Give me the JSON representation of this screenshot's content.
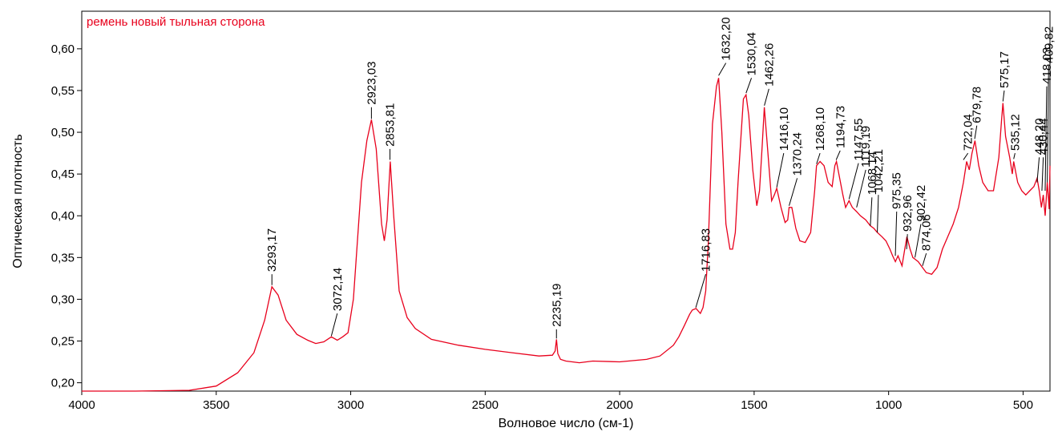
{
  "chart_data": {
    "type": "line",
    "title": "ремень новый тыльная сторона",
    "xlabel": "Волновое число (см-1)",
    "ylabel": "Оптическая плотность",
    "xlim": [
      4000,
      400
    ],
    "ylim": [
      0.19,
      0.645
    ],
    "x_ticks": [
      4000,
      3500,
      3000,
      2500,
      2000,
      1500,
      1000,
      500
    ],
    "x_tick_labels": [
      "4000",
      "3500",
      "3000",
      "2500",
      "2000",
      "1500",
      "1000",
      "500"
    ],
    "y_ticks": [
      0.2,
      0.25,
      0.3,
      0.35,
      0.4,
      0.45,
      0.5,
      0.55,
      0.6
    ],
    "y_tick_labels": [
      "0,20",
      "0,25",
      "0,30",
      "0,35",
      "0,40",
      "0,45",
      "0,50",
      "0,55",
      "0,60"
    ],
    "grid": false,
    "series": [
      {
        "color": "#e8001c",
        "x": [
          4000,
          3800,
          3600,
          3500,
          3420,
          3360,
          3320,
          3293,
          3270,
          3240,
          3200,
          3160,
          3130,
          3100,
          3072,
          3050,
          3030,
          3010,
          2990,
          2960,
          2940,
          2923,
          2905,
          2885,
          2875,
          2865,
          2853,
          2840,
          2820,
          2790,
          2760,
          2700,
          2600,
          2500,
          2400,
          2300,
          2250,
          2240,
          2235,
          2230,
          2220,
          2200,
          2150,
          2100,
          2000,
          1900,
          1850,
          1800,
          1780,
          1760,
          1740,
          1730,
          1716,
          1700,
          1690,
          1680,
          1670,
          1655,
          1640,
          1632,
          1620,
          1605,
          1590,
          1580,
          1570,
          1560,
          1548,
          1540,
          1530,
          1520,
          1505,
          1490,
          1480,
          1470,
          1462,
          1450,
          1435,
          1425,
          1416,
          1400,
          1385,
          1375,
          1370,
          1360,
          1345,
          1330,
          1310,
          1290,
          1275,
          1268,
          1255,
          1240,
          1225,
          1210,
          1200,
          1194,
          1185,
          1170,
          1160,
          1147,
          1135,
          1119,
          1105,
          1085,
          1068,
          1055,
          1042,
          1025,
          1010,
          995,
          985,
          975,
          965,
          950,
          940,
          932,
          920,
          910,
          902,
          890,
          874,
          860,
          840,
          820,
          800,
          780,
          760,
          740,
          722,
          710,
          700,
          690,
          679,
          665,
          650,
          630,
          610,
          590,
          580,
          575,
          565,
          550,
          540,
          535,
          520,
          505,
          490,
          475,
          460,
          448,
          440,
          432,
          425,
          418,
          410,
          403,
          400
        ],
        "y": [
          0.19,
          0.19,
          0.191,
          0.196,
          0.212,
          0.236,
          0.275,
          0.315,
          0.305,
          0.275,
          0.258,
          0.251,
          0.247,
          0.249,
          0.255,
          0.251,
          0.255,
          0.26,
          0.3,
          0.44,
          0.49,
          0.515,
          0.48,
          0.39,
          0.37,
          0.395,
          0.465,
          0.4,
          0.31,
          0.278,
          0.265,
          0.252,
          0.245,
          0.24,
          0.236,
          0.232,
          0.233,
          0.238,
          0.252,
          0.235,
          0.228,
          0.226,
          0.224,
          0.226,
          0.225,
          0.228,
          0.232,
          0.245,
          0.255,
          0.268,
          0.282,
          0.287,
          0.289,
          0.283,
          0.29,
          0.31,
          0.37,
          0.51,
          0.555,
          0.565,
          0.5,
          0.39,
          0.36,
          0.36,
          0.38,
          0.44,
          0.5,
          0.54,
          0.545,
          0.52,
          0.455,
          0.412,
          0.43,
          0.485,
          0.53,
          0.48,
          0.418,
          0.425,
          0.433,
          0.41,
          0.392,
          0.395,
          0.41,
          0.41,
          0.385,
          0.37,
          0.368,
          0.38,
          0.43,
          0.46,
          0.465,
          0.46,
          0.44,
          0.435,
          0.46,
          0.465,
          0.45,
          0.425,
          0.41,
          0.418,
          0.41,
          0.405,
          0.4,
          0.395,
          0.388,
          0.385,
          0.38,
          0.375,
          0.37,
          0.36,
          0.352,
          0.345,
          0.352,
          0.34,
          0.36,
          0.375,
          0.36,
          0.35,
          0.348,
          0.345,
          0.338,
          0.332,
          0.33,
          0.338,
          0.36,
          0.375,
          0.39,
          0.41,
          0.44,
          0.465,
          0.455,
          0.475,
          0.49,
          0.46,
          0.44,
          0.43,
          0.43,
          0.47,
          0.515,
          0.535,
          0.495,
          0.47,
          0.45,
          0.465,
          0.44,
          0.43,
          0.425,
          0.43,
          0.435,
          0.445,
          0.43,
          0.41,
          0.425,
          0.4,
          0.44,
          0.408,
          0.46
        ]
      }
    ],
    "annotations": [
      {
        "label": "3293,17",
        "x": 3293,
        "y": 0.317,
        "rot": -90,
        "lx": 3293,
        "ly": 0.33
      },
      {
        "label": "3072,14",
        "x": 3072,
        "y": 0.256,
        "rot": -90,
        "lx": 3050,
        "ly": 0.283
      },
      {
        "label": "2923,03",
        "x": 2923,
        "y": 0.516,
        "rot": -90,
        "lx": 2923,
        "ly": 0.53
      },
      {
        "label": "2853,81",
        "x": 2854,
        "y": 0.467,
        "rot": -90,
        "lx": 2854,
        "ly": 0.48
      },
      {
        "label": "2235,19",
        "x": 2235,
        "y": 0.253,
        "rot": -90,
        "lx": 2235,
        "ly": 0.264
      },
      {
        "label": "1716,83",
        "x": 1717,
        "y": 0.29,
        "rot": -90,
        "lx": 1680,
        "ly": 0.33
      },
      {
        "label": "1632,20",
        "x": 1632,
        "y": 0.568,
        "rot": -90,
        "lx": 1605,
        "ly": 0.583
      },
      {
        "label": "1530,04",
        "x": 1530,
        "y": 0.547,
        "rot": -90,
        "lx": 1510,
        "ly": 0.565
      },
      {
        "label": "1462,26",
        "x": 1462,
        "y": 0.532,
        "rot": -90,
        "lx": 1445,
        "ly": 0.552
      },
      {
        "label": "1416,10",
        "x": 1416,
        "y": 0.434,
        "rot": -90,
        "lx": 1390,
        "ly": 0.475
      },
      {
        "label": "1370,24",
        "x": 1370,
        "y": 0.412,
        "rot": -90,
        "lx": 1340,
        "ly": 0.445
      },
      {
        "label": "1268,10",
        "x": 1268,
        "y": 0.462,
        "rot": -90,
        "lx": 1255,
        "ly": 0.475
      },
      {
        "label": "1194,73",
        "x": 1195,
        "y": 0.467,
        "rot": -90,
        "lx": 1180,
        "ly": 0.478
      },
      {
        "label": "1147,55",
        "x": 1147,
        "y": 0.42,
        "rot": -90,
        "lx": 1112,
        "ly": 0.463
      },
      {
        "label": "1119,19",
        "x": 1119,
        "y": 0.41,
        "rot": -90,
        "lx": 1085,
        "ly": 0.455
      },
      {
        "label": "1068,14",
        "x": 1068,
        "y": 0.388,
        "rot": -90,
        "lx": 1062,
        "ly": 0.422
      },
      {
        "label": "1042,21",
        "x": 1042,
        "y": 0.38,
        "rot": -90,
        "lx": 1038,
        "ly": 0.425
      },
      {
        "label": "975,35",
        "x": 975,
        "y": 0.352,
        "rot": -90,
        "lx": 970,
        "ly": 0.405
      },
      {
        "label": "932,96",
        "x": 933,
        "y": 0.36,
        "rot": -90,
        "lx": 930,
        "ly": 0.378
      },
      {
        "label": "902,42",
        "x": 902,
        "y": 0.35,
        "rot": -90,
        "lx": 880,
        "ly": 0.39
      },
      {
        "label": "874,06",
        "x": 874,
        "y": 0.34,
        "rot": -90,
        "lx": 860,
        "ly": 0.355
      },
      {
        "label": "722,04",
        "x": 722,
        "y": 0.467,
        "rot": -90,
        "lx": 705,
        "ly": 0.475
      },
      {
        "label": "679,78",
        "x": 680,
        "y": 0.492,
        "rot": -90,
        "lx": 672,
        "ly": 0.508
      },
      {
        "label": "575,17",
        "x": 575,
        "y": 0.537,
        "rot": -90,
        "lx": 570,
        "ly": 0.55
      },
      {
        "label": "535,12",
        "x": 535,
        "y": 0.468,
        "rot": -90,
        "lx": 530,
        "ly": 0.475
      },
      {
        "label": "448,20",
        "x": 448,
        "y": 0.44,
        "rot": -90,
        "lx": 440,
        "ly": 0.47
      },
      {
        "label": "430,44",
        "x": 430,
        "y": 0.43,
        "rot": -90,
        "lx": 425,
        "ly": 0.47
      },
      {
        "label": "418,03",
        "x": 418,
        "y": 0.43,
        "rot": -90,
        "lx": 412,
        "ly": 0.555
      },
      {
        "label": "409,82",
        "x": 410,
        "y": 0.44,
        "rot": -90,
        "lx": 405,
        "ly": 0.58
      }
    ]
  }
}
